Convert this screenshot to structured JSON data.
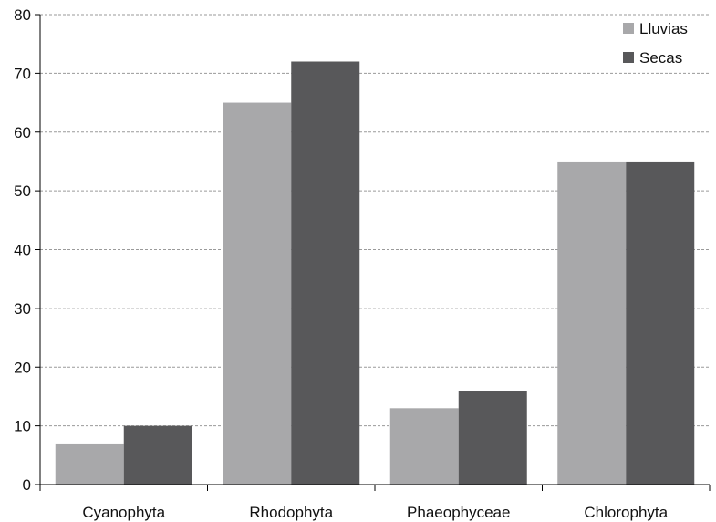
{
  "chart_data": {
    "type": "bar",
    "title": "",
    "xlabel": "",
    "ylabel": "",
    "categories": [
      "Cyanophyta",
      "Rhodophyta",
      "Phaeophyceae",
      "Chlorophyta"
    ],
    "series": [
      {
        "name": "Lluvias",
        "values": [
          7,
          65,
          13,
          55
        ],
        "color": "#a8a8aa"
      },
      {
        "name": "Secas",
        "values": [
          10,
          72,
          16,
          55
        ],
        "color": "#58585a"
      }
    ],
    "ylim": [
      0,
      80
    ],
    "yticks": [
      0,
      10,
      20,
      30,
      40,
      50,
      60,
      70,
      80
    ],
    "grid": "horizontal dashed",
    "legend_position": "top-right"
  }
}
